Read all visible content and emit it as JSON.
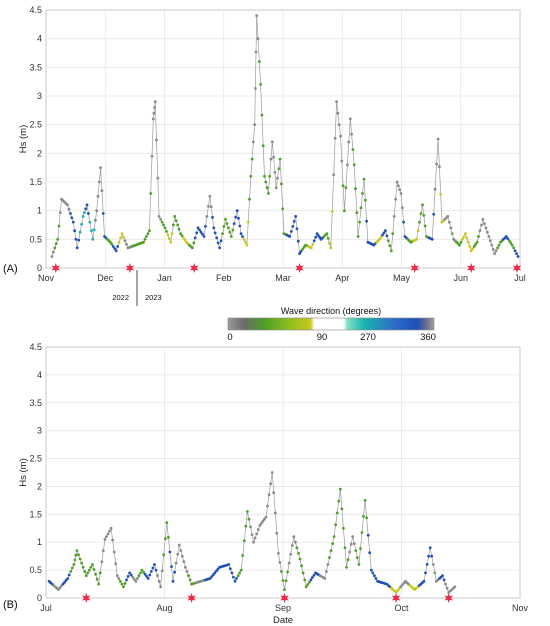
{
  "colors": {
    "grey": "#8a8a8a",
    "yellow": "#c8c81e",
    "green": "#4ea024",
    "teal": "#1ab3ad",
    "blue": "#1f4fb8",
    "marker": "#ee2a4a",
    "grid": "#e6e6e6"
  },
  "colorbar": {
    "title": "Wave direction (degrees)",
    "ticks": [
      "0",
      "90",
      "270",
      "360"
    ]
  },
  "year_labels": [
    "2022",
    "2023"
  ],
  "chart_data": [
    {
      "panel_label": "(A)",
      "type": "scatter",
      "ylabel": "Hs (m)",
      "xlabel": "",
      "ylim": [
        0,
        4.5
      ],
      "yticks": [
        "0",
        "0.5",
        "1",
        "1.5",
        "2",
        "2.5",
        "3",
        "3.5",
        "4",
        "4.5"
      ],
      "xticks": [
        "Nov",
        "Dec",
        "Jan",
        "Feb",
        "Mar",
        "Apr",
        "May",
        "Jun",
        "Jul"
      ],
      "x_unit": "days from 1 Nov 2022",
      "xlim": [
        0,
        243
      ],
      "grid": true,
      "low_wave_markers_days": [
        5,
        43,
        76,
        130,
        189,
        218,
        263
      ],
      "series": [
        {
          "values": [
            [
              3,
              0.2,
              "grey"
            ],
            [
              6,
              0.5,
              "green"
            ],
            [
              8,
              1.2,
              "grey"
            ],
            [
              11,
              1.1,
              "grey"
            ],
            [
              14,
              0.8,
              "blue"
            ],
            [
              16,
              0.35,
              "blue"
            ],
            [
              19,
              0.9,
              "teal"
            ],
            [
              21,
              1.1,
              "blue"
            ],
            [
              24,
              0.5,
              "teal"
            ],
            [
              26,
              1.0,
              "grey"
            ],
            [
              28,
              1.75,
              "grey"
            ],
            [
              30,
              0.55,
              "blue"
            ],
            [
              33,
              0.45,
              "green"
            ],
            [
              36,
              0.3,
              "blue"
            ],
            [
              39,
              0.6,
              "yellow"
            ],
            [
              42,
              0.35,
              "grey"
            ],
            [
              46,
              0.4,
              "green"
            ],
            [
              50,
              0.45,
              "green"
            ],
            [
              53,
              0.65,
              "green"
            ],
            [
              55,
              2.6,
              "grey"
            ],
            [
              56,
              2.9,
              "grey"
            ],
            [
              58,
              0.9,
              "grey"
            ],
            [
              61,
              0.7,
              "green"
            ],
            [
              64,
              0.45,
              "yellow"
            ],
            [
              66,
              0.9,
              "green"
            ],
            [
              69,
              0.6,
              "green"
            ],
            [
              72,
              0.45,
              "yellow"
            ],
            [
              75,
              0.35,
              "green"
            ],
            [
              78,
              0.7,
              "blue"
            ],
            [
              81,
              0.55,
              "blue"
            ],
            [
              84,
              1.25,
              "grey"
            ],
            [
              86,
              0.7,
              "blue"
            ],
            [
              89,
              0.35,
              "blue"
            ],
            [
              92,
              0.85,
              "green"
            ],
            [
              95,
              0.55,
              "green"
            ],
            [
              98,
              1.0,
              "blue"
            ],
            [
              100,
              0.6,
              "blue"
            ],
            [
              103,
              0.4,
              "yellow"
            ],
            [
              105,
              1.6,
              "green"
            ],
            [
              107,
              2.5,
              "grey"
            ],
            [
              108,
              4.4,
              "grey"
            ],
            [
              110,
              3.2,
              "green"
            ],
            [
              112,
              1.6,
              "green"
            ],
            [
              114,
              1.3,
              "green"
            ],
            [
              116,
              2.2,
              "grey"
            ],
            [
              118,
              1.4,
              "grey"
            ],
            [
              120,
              1.9,
              "green"
            ],
            [
              122,
              0.6,
              "green"
            ],
            [
              125,
              0.55,
              "blue"
            ],
            [
              128,
              0.9,
              "blue"
            ],
            [
              130,
              0.25,
              "blue"
            ],
            [
              133,
              0.4,
              "green"
            ],
            [
              136,
              0.35,
              "yellow"
            ],
            [
              139,
              0.6,
              "blue"
            ],
            [
              141,
              0.5,
              "blue"
            ],
            [
              144,
              0.6,
              "green"
            ],
            [
              146,
              0.35,
              "yellow"
            ],
            [
              149,
              2.9,
              "grey"
            ],
            [
              151,
              2.3,
              "grey"
            ],
            [
              153,
              1.0,
              "green"
            ],
            [
              156,
              2.6,
              "grey"
            ],
            [
              158,
              1.8,
              "green"
            ],
            [
              160,
              0.55,
              "green"
            ],
            [
              163,
              1.55,
              "green"
            ],
            [
              165,
              0.45,
              "blue"
            ],
            [
              168,
              0.4,
              "blue"
            ],
            [
              171,
              0.5,
              "yellow"
            ],
            [
              174,
              0.65,
              "blue"
            ],
            [
              177,
              0.3,
              "green"
            ],
            [
              180,
              1.5,
              "grey"
            ],
            [
              182,
              1.3,
              "grey"
            ],
            [
              184,
              0.55,
              "blue"
            ],
            [
              187,
              0.45,
              "green"
            ],
            [
              190,
              0.5,
              "yellow"
            ],
            [
              193,
              1.1,
              "green"
            ],
            [
              195,
              0.55,
              "green"
            ],
            [
              198,
              0.5,
              "blue"
            ],
            [
              201,
              2.25,
              "grey"
            ],
            [
              203,
              0.8,
              "yellow"
            ],
            [
              206,
              0.9,
              "grey"
            ],
            [
              209,
              0.5,
              "grey"
            ],
            [
              212,
              0.4,
              "green"
            ],
            [
              215,
              0.6,
              "yellow"
            ],
            [
              218,
              0.3,
              "yellow"
            ],
            [
              221,
              0.45,
              "green"
            ],
            [
              224,
              0.85,
              "grey"
            ],
            [
              227,
              0.55,
              "grey"
            ],
            [
              230,
              0.25,
              "grey"
            ],
            [
              233,
              0.45,
              "green"
            ],
            [
              236,
              0.55,
              "blue"
            ],
            [
              239,
              0.4,
              "green"
            ],
            [
              242,
              0.2,
              "blue"
            ]
          ]
        }
      ]
    },
    {
      "panel_label": "(B)",
      "type": "scatter",
      "ylabel": "Hs (m)",
      "xlabel": "Date",
      "ylim": [
        0,
        4.5
      ],
      "yticks": [
        "0",
        "0.5",
        "1",
        "1.5",
        "2",
        "2.5",
        "3",
        "3.5",
        "4",
        "4.5"
      ],
      "xticks": [
        "Jul",
        "Aug",
        "Sep",
        "Oct",
        "Nov"
      ],
      "x_unit": "days from 1 Jul 2023",
      "xlim": [
        0,
        153
      ],
      "grid": true,
      "low_wave_markers_days": [
        13,
        47,
        77,
        113,
        130
      ],
      "series": [
        {
          "values": [
            [
              1,
              0.3,
              "blue"
            ],
            [
              4,
              0.15,
              "grey"
            ],
            [
              7,
              0.35,
              "blue"
            ],
            [
              9,
              0.6,
              "green"
            ],
            [
              10,
              0.85,
              "green"
            ],
            [
              13,
              0.4,
              "green"
            ],
            [
              15,
              0.6,
              "green"
            ],
            [
              17,
              0.25,
              "green"
            ],
            [
              19,
              1.05,
              "grey"
            ],
            [
              21,
              1.25,
              "grey"
            ],
            [
              23,
              0.4,
              "grey"
            ],
            [
              25,
              0.2,
              "green"
            ],
            [
              27,
              0.45,
              "blue"
            ],
            [
              29,
              0.3,
              "grey"
            ],
            [
              31,
              0.5,
              "green"
            ],
            [
              33,
              0.35,
              "blue"
            ],
            [
              35,
              0.6,
              "blue"
            ],
            [
              37,
              0.2,
              "grey"
            ],
            [
              39,
              1.35,
              "green"
            ],
            [
              41,
              0.3,
              "blue"
            ],
            [
              43,
              0.95,
              "grey"
            ],
            [
              45,
              0.55,
              "grey"
            ],
            [
              47,
              0.25,
              "green"
            ],
            [
              50,
              0.3,
              "grey"
            ],
            [
              53,
              0.35,
              "blue"
            ],
            [
              56,
              0.55,
              "blue"
            ],
            [
              59,
              0.6,
              "blue"
            ],
            [
              61,
              0.3,
              "blue"
            ],
            [
              63,
              0.5,
              "green"
            ],
            [
              65,
              1.55,
              "green"
            ],
            [
              67,
              1.0,
              "grey"
            ],
            [
              69,
              1.3,
              "grey"
            ],
            [
              71,
              1.45,
              "grey"
            ],
            [
              73,
              2.25,
              "grey"
            ],
            [
              75,
              0.8,
              "grey"
            ],
            [
              77,
              0.15,
              "green"
            ],
            [
              80,
              1.1,
              "grey"
            ],
            [
              82,
              0.7,
              "green"
            ],
            [
              84,
              0.2,
              "green"
            ],
            [
              87,
              0.45,
              "blue"
            ],
            [
              90,
              0.35,
              "grey"
            ],
            [
              93,
              1.1,
              "green"
            ],
            [
              95,
              1.95,
              "green"
            ],
            [
              97,
              0.55,
              "green"
            ],
            [
              99,
              1.1,
              "grey"
            ],
            [
              101,
              0.6,
              "green"
            ],
            [
              103,
              1.75,
              "green"
            ],
            [
              105,
              0.5,
              "blue"
            ],
            [
              107,
              0.3,
              "blue"
            ],
            [
              110,
              0.25,
              "blue"
            ],
            [
              113,
              0.1,
              "yellow"
            ],
            [
              116,
              0.3,
              "grey"
            ],
            [
              119,
              0.15,
              "yellow"
            ],
            [
              122,
              0.3,
              "blue"
            ],
            [
              124,
              0.9,
              "blue"
            ],
            [
              126,
              0.3,
              "grey"
            ],
            [
              128,
              0.4,
              "blue"
            ],
            [
              130,
              0.1,
              "grey"
            ],
            [
              132,
              0.2,
              "grey"
            ]
          ]
        }
      ]
    }
  ]
}
